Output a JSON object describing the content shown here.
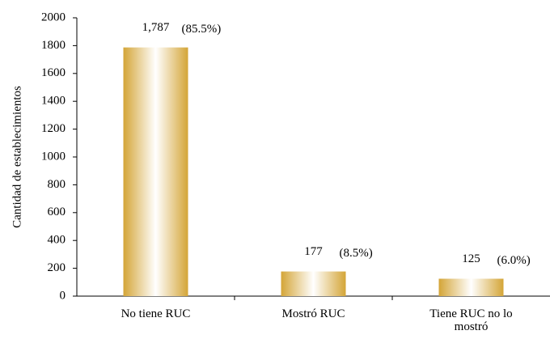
{
  "chart_data": {
    "type": "bar",
    "y_label": "Cantidad de establecimientos",
    "categories": [
      "No tiene RUC",
      "Mostró RUC",
      "Tiene RUC no lo mostró"
    ],
    "values": [
      1787,
      177,
      125
    ],
    "value_labels": [
      "1,787",
      "177",
      "125"
    ],
    "percent_labels": [
      "(85.5%)",
      "(8.5%)",
      "(6.0%)"
    ],
    "color": "#d4a537",
    "ylim": [
      0,
      2000
    ],
    "yticks": [
      0,
      200,
      400,
      600,
      800,
      1000,
      1200,
      1400,
      1600,
      1800,
      2000
    ],
    "grid": false
  }
}
